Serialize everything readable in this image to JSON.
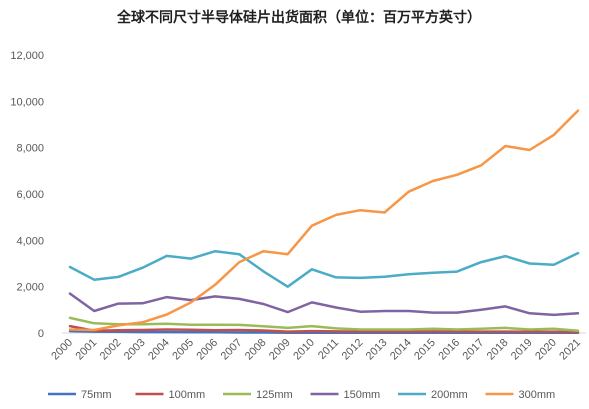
{
  "chart_data": {
    "type": "line",
    "title": "全球不同尺寸半导体硅片出货面积（单位：百万平方英寸）",
    "xlabel": "",
    "ylabel": "",
    "ylim": [
      0,
      12000
    ],
    "yticks": [
      0,
      2000,
      4000,
      6000,
      8000,
      10000,
      12000
    ],
    "ytick_labels": [
      "0",
      "2,000",
      "4,000",
      "6,000",
      "8,000",
      "10,000",
      "12,000"
    ],
    "grid": false,
    "legend_position": "bottom",
    "categories": [
      "2000",
      "2001",
      "2002",
      "2003",
      "2004",
      "2005",
      "2006",
      "2007",
      "2008",
      "2009",
      "2010",
      "2011",
      "2012",
      "2013",
      "2014",
      "2015",
      "2016",
      "2017",
      "2018",
      "2019",
      "2020",
      "2021"
    ],
    "series": [
      {
        "name": "75mm",
        "color": "#4472c4",
        "values": [
          80,
          60,
          50,
          40,
          40,
          30,
          30,
          20,
          20,
          10,
          10,
          10,
          10,
          10,
          10,
          10,
          10,
          10,
          10,
          10,
          10,
          10
        ]
      },
      {
        "name": "100mm",
        "color": "#c0504d",
        "values": [
          300,
          100,
          120,
          130,
          150,
          140,
          120,
          130,
          110,
          60,
          80,
          70,
          60,
          60,
          60,
          70,
          60,
          60,
          60,
          50,
          50,
          40
        ]
      },
      {
        "name": "125mm",
        "color": "#9bbb59",
        "values": [
          650,
          420,
          380,
          380,
          400,
          360,
          360,
          350,
          290,
          220,
          300,
          200,
          150,
          150,
          150,
          180,
          150,
          180,
          220,
          150,
          180,
          100
        ]
      },
      {
        "name": "150mm",
        "color": "#8064a2",
        "values": [
          1700,
          950,
          1270,
          1280,
          1550,
          1420,
          1580,
          1470,
          1250,
          900,
          1320,
          1100,
          920,
          950,
          950,
          880,
          880,
          1000,
          1150,
          850,
          780,
          850
        ]
      },
      {
        "name": "200mm",
        "color": "#4bacc6",
        "values": [
          2850,
          2300,
          2420,
          2820,
          3330,
          3210,
          3530,
          3400,
          2660,
          2000,
          2750,
          2400,
          2380,
          2430,
          2540,
          2600,
          2650,
          3060,
          3320,
          3000,
          2950,
          3450
        ]
      },
      {
        "name": "300mm",
        "color": "#f79646",
        "values": [
          150,
          130,
          330,
          460,
          800,
          1320,
          2080,
          3060,
          3530,
          3400,
          4630,
          5100,
          5300,
          5200,
          6100,
          6560,
          6830,
          7240,
          8070,
          7900,
          8550,
          9600
        ]
      }
    ]
  }
}
